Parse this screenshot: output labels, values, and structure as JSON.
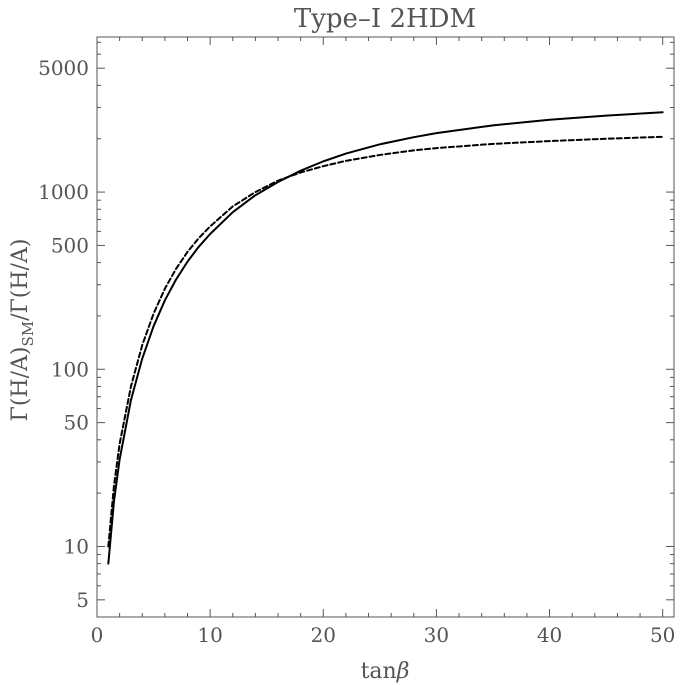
{
  "chart_data": {
    "type": "line",
    "title": "Type–I 2HDM",
    "xlabel": "tanβ",
    "ylabel": "Γ(H/A)SM/Γ(H/A)",
    "ylabel_main": "Γ(H/A)",
    "ylabel_sub": "SM",
    "ylabel_tail": "/Γ(H/A)",
    "xlim": [
      0,
      51
    ],
    "ylim": [
      4,
      7500
    ],
    "yscale": "log",
    "grid": false,
    "xticks": [
      0,
      10,
      20,
      30,
      40,
      50
    ],
    "yticks": [
      5,
      10,
      50,
      100,
      500,
      1000,
      5000
    ],
    "series": [
      {
        "style": "solid",
        "color": "#000000",
        "x": [
          1,
          1.5,
          2,
          3,
          4,
          5,
          6,
          7,
          8,
          9,
          10,
          12,
          14,
          16,
          18,
          20,
          22,
          25,
          28,
          30,
          35,
          40,
          45,
          50
        ],
        "y": [
          8,
          18,
          31,
          67,
          115,
          175,
          245,
          322,
          405,
          492,
          580,
          770,
          960,
          1140,
          1320,
          1490,
          1650,
          1860,
          2040,
          2150,
          2380,
          2560,
          2700,
          2820
        ]
      },
      {
        "style": "dashed",
        "color": "#000000",
        "x": [
          1,
          1.5,
          2,
          3,
          4,
          5,
          6,
          7,
          8,
          9,
          10,
          12,
          14,
          16,
          18,
          20,
          22,
          25,
          28,
          30,
          35,
          40,
          45,
          50
        ],
        "y": [
          10,
          22,
          38,
          80,
          137,
          206,
          285,
          370,
          460,
          550,
          640,
          830,
          1000,
          1160,
          1290,
          1400,
          1500,
          1620,
          1720,
          1770,
          1870,
          1940,
          2000,
          2050
        ]
      }
    ]
  }
}
